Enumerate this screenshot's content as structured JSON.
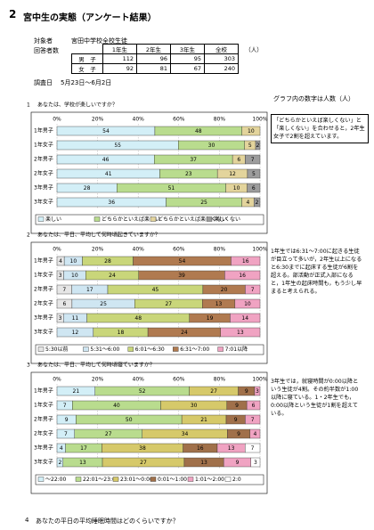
{
  "header": {
    "number": "2",
    "title": "宮中生の実態（アンケート結果）"
  },
  "survey": {
    "target_label": "対象者",
    "target": "宮田中学校全校生徒",
    "respondents_label": "回答者数",
    "date_label": "調査日",
    "date": "5月23日～6月2日"
  },
  "table": {
    "columns": [
      "1年生",
      "2年生",
      "3年生",
      "全校"
    ],
    "unit": "（人）",
    "rows": [
      {
        "label": "男　子",
        "values": [
          112,
          96,
          95,
          303
        ]
      },
      {
        "label": "女　子",
        "values": [
          92,
          81,
          67,
          240
        ]
      }
    ]
  },
  "note": "グラフ内の数字は人数（人）",
  "chart_data": [
    {
      "type": "bar",
      "orientation": "horizontal",
      "stacked": "percent",
      "number": "1",
      "title": "あなたは、学校が楽しいですか？",
      "categories": [
        "1年男子",
        "1年女子",
        "2年男子",
        "2年女子",
        "3年男子",
        "3年女子"
      ],
      "series": [
        {
          "name": "楽しい",
          "color": "#d3eff7",
          "values": [
            54,
            55,
            46,
            41,
            28,
            36
          ]
        },
        {
          "name": "どちらかといえば楽しい",
          "color": "#b9dc8e",
          "values": [
            48,
            30,
            37,
            23,
            51,
            25
          ]
        },
        {
          "name": "どちらかといえば楽しくない",
          "color": "#e3d49c",
          "values": [
            10,
            5,
            6,
            12,
            10,
            4
          ]
        },
        {
          "name": "楽しくない",
          "color": "#9c9c9c",
          "values": [
            0,
            2,
            7,
            5,
            6,
            2
          ]
        }
      ],
      "xlim": [
        0,
        100
      ],
      "xticks": [
        {
          "value": 0,
          "label": "0%"
        },
        {
          "value": 20,
          "label": "20%"
        },
        {
          "value": 40,
          "label": "40%"
        },
        {
          "value": 60,
          "label": "60%"
        },
        {
          "value": 80,
          "label": "80%"
        },
        {
          "value": 100,
          "label": "100%"
        }
      ],
      "side_note": "「どちらかといえば楽しくない」と「楽しくない」を合わせると，2年生女子で2割を超えています。"
    },
    {
      "type": "bar",
      "orientation": "horizontal",
      "stacked": "percent",
      "number": "2",
      "title": "あなたは、平日、平均して何時頃起きていますか？",
      "categories": [
        "1年男子",
        "1年女子",
        "2年男子",
        "2年女子",
        "3年男子",
        "3年女子"
      ],
      "series": [
        {
          "name": "5:30以前",
          "color": "#e6e6e6",
          "values": [
            4,
            3,
            7,
            6,
            3,
            0
          ]
        },
        {
          "name": "5:31～6:00",
          "color": "#cfe6f2",
          "values": [
            10,
            10,
            17,
            25,
            11,
            12
          ]
        },
        {
          "name": "6:01～6:30",
          "color": "#c9d67a",
          "values": [
            28,
            24,
            45,
            27,
            48,
            18
          ]
        },
        {
          "name": "6:31～7:00",
          "color": "#b07a50",
          "values": [
            54,
            39,
            20,
            13,
            19,
            24
          ]
        },
        {
          "name": "7:01以降",
          "color": "#f0a3c2",
          "values": [
            16,
            16,
            7,
            10,
            14,
            13
          ]
        }
      ],
      "xlim": [
        0,
        100
      ],
      "xticks": [
        {
          "value": 0,
          "label": "0%"
        },
        {
          "value": 20,
          "label": "20%"
        },
        {
          "value": 40,
          "label": "40%"
        },
        {
          "value": 60,
          "label": "60%"
        },
        {
          "value": 80,
          "label": "80%"
        },
        {
          "value": 100,
          "label": "100%"
        }
      ],
      "side_note": "1年生では6:31～7:00に起きる生徒が目立って多いが，2年生以上になると6:30までに起床する生徒が6割を超える。部活動が正式入部になると，1年生の起床時間も，もう少し早まると考えられる。"
    },
    {
      "type": "bar",
      "orientation": "horizontal",
      "stacked": "percent",
      "number": "3",
      "title": "あなたは、平日、平均して何時頃寝ていますか？",
      "categories": [
        "1年男子",
        "1年女子",
        "2年男子",
        "2年女子",
        "3年男子",
        "3年女子"
      ],
      "series": [
        {
          "name": "～22:00",
          "color": "#d3eff7",
          "values": [
            21,
            7,
            9,
            7,
            4,
            2
          ]
        },
        {
          "name": "22:01～23:00",
          "color": "#b9dc8e",
          "values": [
            52,
            40,
            50,
            27,
            17,
            13
          ]
        },
        {
          "name": "23:01～0:00",
          "color": "#d6c96a",
          "values": [
            27,
            30,
            21,
            34,
            38,
            27
          ]
        },
        {
          "name": "0:01～1:00",
          "color": "#a0704a",
          "values": [
            9,
            9,
            9,
            9,
            16,
            13
          ]
        },
        {
          "name": "1:01～2:00",
          "color": "#f0a3c2",
          "values": [
            3,
            6,
            7,
            4,
            13,
            9
          ]
        },
        {
          "name": "2:0",
          "color": "#ffffff",
          "values": [
            0,
            0,
            0,
            0,
            7,
            3
          ]
        }
      ],
      "xlim": [
        0,
        100
      ],
      "xticks": [
        {
          "value": 0,
          "label": "0%"
        },
        {
          "value": 20,
          "label": "20%"
        },
        {
          "value": 40,
          "label": "40%"
        },
        {
          "value": 60,
          "label": "60%"
        },
        {
          "value": 80,
          "label": "80%"
        },
        {
          "value": 100,
          "label": "100%"
        }
      ],
      "side_note": "3年生では，就寝時間が0:00以降という生徒が4割。その約半数が1:00以降に寝ている。1・2年生でも，0:00以降という生徒が1割を超えている。"
    }
  ],
  "next_question": {
    "number": "4",
    "title": "あなたの平日の平均睡眠時間はどのくらいですか？"
  }
}
